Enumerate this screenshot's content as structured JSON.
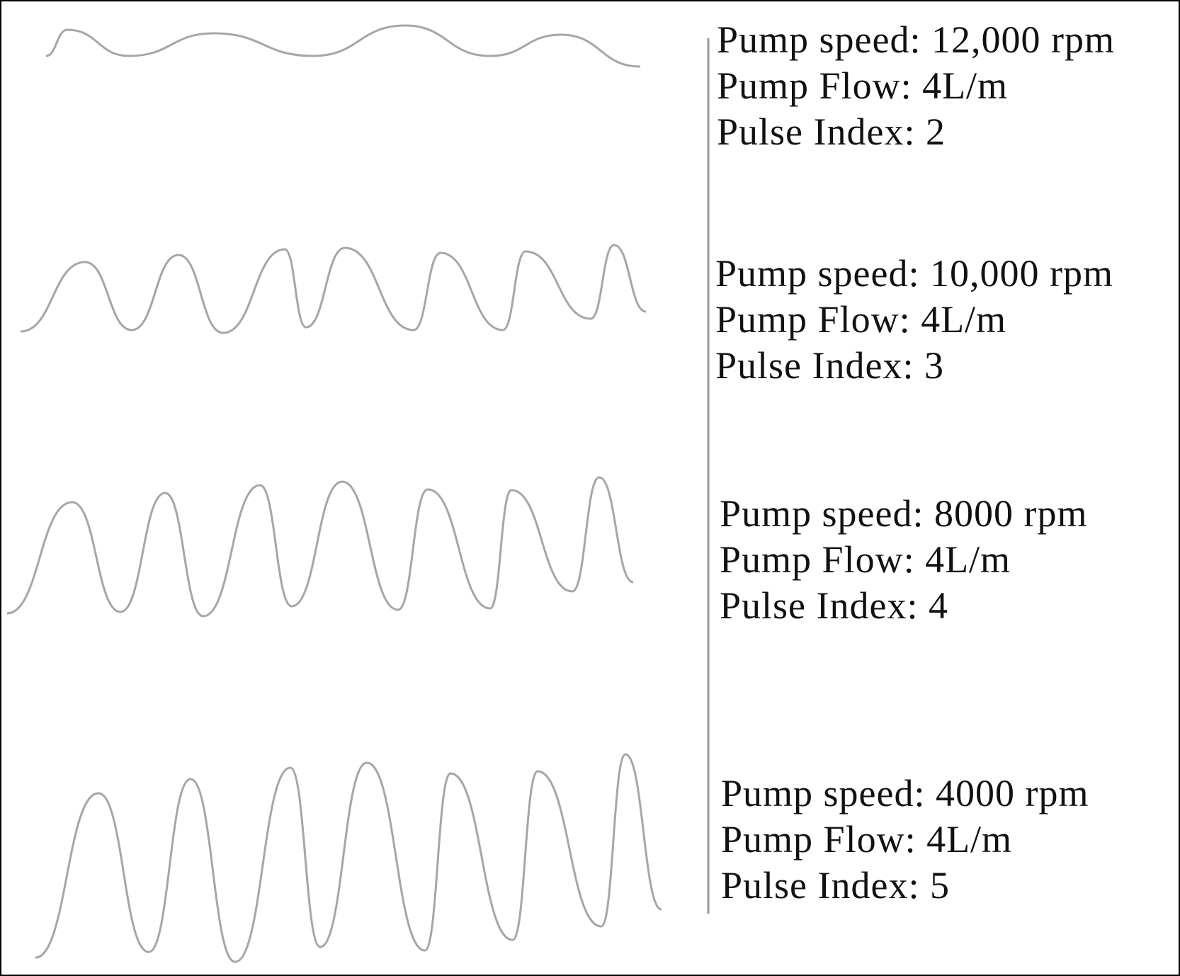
{
  "colors": {
    "wave": "#a6a6a6",
    "divider": "#9a9a9a",
    "text": "#111111",
    "frame": "#000000"
  },
  "panels": [
    {
      "speed_text": "Pump speed: 12,000 rpm",
      "flow_text": "Pump Flow: 4L/m",
      "index_text": "Pulse Index: 2",
      "pulse_index": 2
    },
    {
      "speed_text": "Pump speed: 10,000 rpm",
      "flow_text": "Pump Flow: 4L/m",
      "index_text": "Pulse Index: 3",
      "pulse_index": 3
    },
    {
      "speed_text": "Pump speed: 8000 rpm",
      "flow_text": "Pump Flow: 4L/m",
      "index_text": "Pulse Index: 4",
      "pulse_index": 4
    },
    {
      "speed_text": "Pump speed: 4000 rpm",
      "flow_text": "Pump Flow: 4L/m",
      "index_text": "Pulse Index: 5",
      "pulse_index": 5
    }
  ]
}
